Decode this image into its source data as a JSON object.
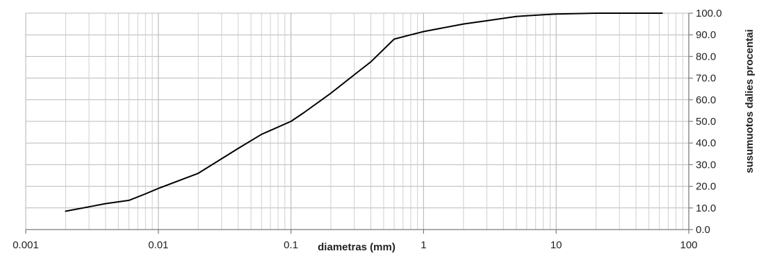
{
  "chart_data": {
    "type": "line",
    "xlabel": "diametras (mm)",
    "ylabel": "susumuotos dalies procentai",
    "x_scale": "log",
    "xlim": [
      0.001,
      100
    ],
    "ylim": [
      0,
      100
    ],
    "x_ticks": [
      0.001,
      0.01,
      0.1,
      1,
      10,
      100
    ],
    "x_tick_labels": [
      "0.001",
      "0.01",
      "0.1",
      "1",
      "10",
      "100"
    ],
    "y_ticks": [
      0,
      10,
      20,
      30,
      40,
      50,
      60,
      70,
      80,
      90,
      100
    ],
    "y_tick_labels": [
      "0.0",
      "10.0",
      "20.0",
      "30.0",
      "40.0",
      "50.0",
      "60.0",
      "70.0",
      "80.0",
      "90.0",
      "100.0"
    ],
    "y_axis_side": "right",
    "grid": true,
    "legend": "none",
    "series": [
      {
        "color": "#000000",
        "x": [
          0.002,
          0.003,
          0.004,
          0.006,
          0.008,
          0.01,
          0.02,
          0.04,
          0.06,
          0.1,
          0.125,
          0.2,
          0.3,
          0.4,
          0.6,
          0.8,
          1,
          2,
          3,
          5,
          8,
          10,
          20,
          40,
          63
        ],
        "y": [
          8.5,
          10.5,
          12,
          13.5,
          16.5,
          19,
          26,
          37.5,
          44,
          50,
          54,
          63,
          71.5,
          77.5,
          88,
          90,
          91.5,
          95,
          96.5,
          98.5,
          99.3,
          99.6,
          100,
          100,
          100
        ]
      }
    ]
  }
}
